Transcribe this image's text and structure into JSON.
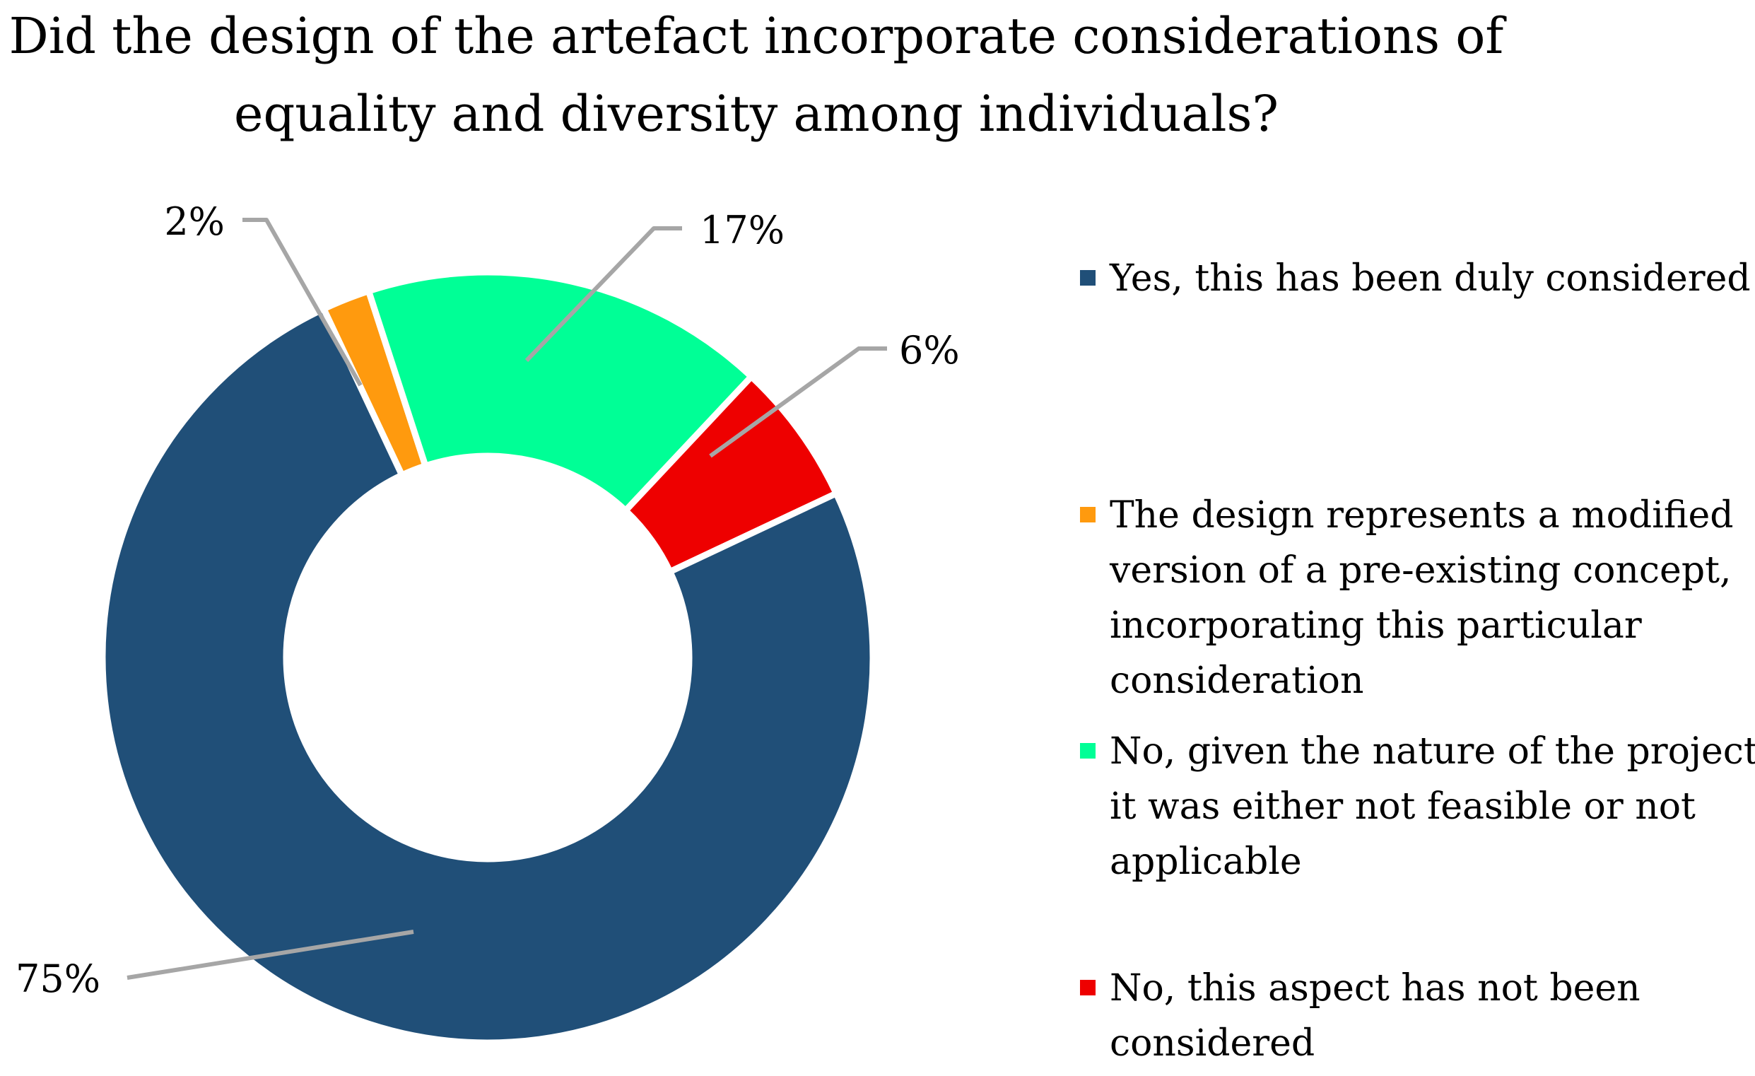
{
  "chart_data": {
    "type": "pie",
    "variant": "donut",
    "title": "Did the design of the artefact incorporate considerations of equality and diversity among individuals?",
    "title_lines": [
      "Did the design of the artefact incorporate considerations of",
      "equality and diversity among individuals?"
    ],
    "slices": [
      {
        "label": "Yes, this has been duly considered",
        "legend_lines": [
          "Yes, this has been duly considered"
        ],
        "value": 75,
        "display": "75%",
        "color": "#204f78"
      },
      {
        "label": "The design represents a modified version of a pre-existing concept, incorporating this particular consideration",
        "legend_lines": [
          "The design represents a modified",
          "version of a pre-existing concept,",
          "incorporating this particular",
          "consideration"
        ],
        "value": 2,
        "display": "2%",
        "color": "#ff9a0e"
      },
      {
        "label": "No, given the nature of the project, it was either not feasible or not applicable",
        "legend_lines": [
          "No, given the nature of the project,",
          "it was either not feasible or not",
          "applicable"
        ],
        "value": 17,
        "display": "17%",
        "color": "#00ff96"
      },
      {
        "label": "No, this aspect has not been considered",
        "legend_lines": [
          "No, this aspect has not been",
          "considered"
        ],
        "value": 6,
        "display": "6%",
        "color": "#ee0000"
      }
    ],
    "legend_position": "right",
    "leader_line_color": "#a6a6a6"
  }
}
